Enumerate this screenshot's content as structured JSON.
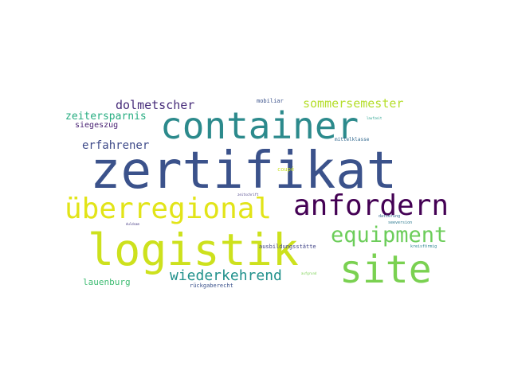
{
  "word_cloud": {
    "words": [
      {
        "text": "zertifikat",
        "color": "#3b528b"
      },
      {
        "text": "container",
        "color": "#2c8a8c"
      },
      {
        "text": "logistik",
        "color": "#cde11d"
      },
      {
        "text": "überregional",
        "color": "#e2e418"
      },
      {
        "text": "anfordern",
        "color": "#440154"
      },
      {
        "text": "site",
        "color": "#7ad151"
      },
      {
        "text": "equipment",
        "color": "#6ccd5a"
      },
      {
        "text": "wiederkehrend",
        "color": "#21918c"
      },
      {
        "text": "sommersemester",
        "color": "#b5de2b"
      },
      {
        "text": "dolmetscher",
        "color": "#472c7a"
      },
      {
        "text": "zeitersparnis",
        "color": "#27ad81"
      },
      {
        "text": "erfahrener",
        "color": "#3e4a89"
      },
      {
        "text": "siegeszug",
        "color": "#482173"
      },
      {
        "text": "lauenburg",
        "color": "#3fbc73"
      },
      {
        "text": "mobiliar",
        "color": "#3b528b"
      },
      {
        "text": "mittelklasse",
        "color": "#31688e"
      },
      {
        "text": "coupé",
        "color": "#c8e020"
      },
      {
        "text": "ausbildungsstätte",
        "color": "#414487"
      },
      {
        "text": "rückgaberecht",
        "color": "#3b528b"
      },
      {
        "text": "datierung",
        "color": "#31688e"
      },
      {
        "text": "seeversion",
        "color": "#2a788e"
      },
      {
        "text": "kreisförmig",
        "color": "#26828e"
      },
      {
        "text": "aufgrund",
        "color": "#7ad151"
      },
      {
        "text": "zeitschrift",
        "color": "#443a83"
      },
      {
        "text": "laufzeit",
        "color": "#1f9e89"
      },
      {
        "text": "duldsam",
        "color": "#443983"
      }
    ]
  }
}
